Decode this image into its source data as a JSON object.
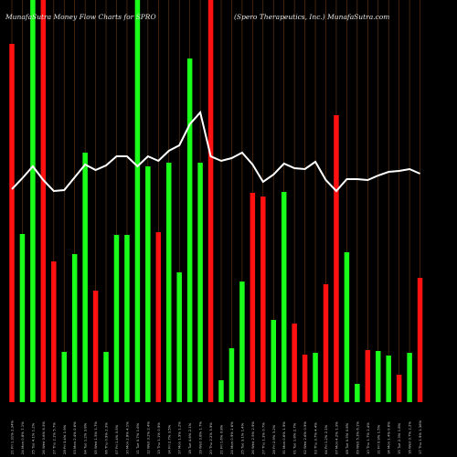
{
  "header": {
    "title": "MunafaSutra  Money Flow  Charts for SPRO",
    "subtitle": "(Spero  Therapeutics,  Inc.) MunafaSutra.com"
  },
  "chart_data": {
    "type": "bar",
    "ylim": [
      0,
      440
    ],
    "colors": {
      "up": "#19ff19",
      "down": "#ff1111",
      "grid": "#6b3a14",
      "line": "#ffffff",
      "background": "#000000"
    },
    "categories": [
      "21 Fri Feb 2025",
      "24 Mon Feb 2025",
      "25 Tue Feb 2025",
      "26 Wed Feb 2025",
      "27 Thu Feb 2025",
      "28 Fri Feb 2025",
      "03 Mon Mar 2025",
      "04 Tue Mar 2025",
      "05 Wed Mar 2025",
      "06 Thu Mar 2025",
      "07 Fri Mar 2025",
      "10 Mon Mar 2025",
      "11 Tue Mar 2025",
      "12 Wed Mar 2025",
      "13 Thu Mar 2025",
      "14 Fri Mar 2025",
      "17 Mon Mar 2025",
      "18 Tue Mar 2025",
      "19 Wed Mar 2025",
      "20 Thu Mar 2025",
      "21 Fri Mar 2025",
      "24 Mon Mar 2025",
      "25 Tue Mar 2025",
      "26 Wed Mar 2025",
      "27 Thu Mar 2025",
      "28 Fri Mar 2025",
      "31 Mon Mar 2025",
      "01 Tue Apr 2025",
      "02 Wed Apr 2025",
      "03 Thu Apr 2025",
      "04 Fri Apr 2025",
      "07 Mon Apr 2025",
      "08 Tue Apr 2025",
      "09 Wed Apr 2025",
      "10 Thu Apr 2025",
      "11 Fri Apr 2025",
      "14 Mon Apr 2025",
      "15 Tue Apr 2025",
      "16 Wed Apr 2025",
      "17 Thu Apr 2025"
    ],
    "tick_labels": [
      "21 Fri 1.31% 2.34%",
      "24 Mon 0.8% 7.1%",
      "25 Tue 4.1% 1.2%",
      "26 Wed 0.6% 6.3%",
      "27 Thu 2.1% 5.7%",
      "28 Fri 3.4% 1.9%",
      "03 Mon 2.4% 0.6%",
      "04 Tue 1.2% 3.8%",
      "05 Wed 1.5% 1.7%",
      "06 Thu 0.9% 2.3%",
      "07 Fri 1.4% 0.5%",
      "10 Mon 2.8% 4.1%",
      "11 Tue 0.7% 1.6%",
      "12 Wed 3.2% 2.4%",
      "13 Thu 1.1% 0.9%",
      "14 Fri 2.7% 3.5%",
      "17 Mon 1.9% 1.2%",
      "18 Tue 4.6% 2.1%",
      "19 Wed 0.8% 1.7%",
      "20 Thu 2.2% 3.9%",
      "21 Fri 1.6% 0.8%",
      "24 Mon 0.9% 2.6%",
      "25 Tue 3.1% 1.4%",
      "26 Wed 2.5% 2.9%",
      "27 Thu 1.3% 0.7%",
      "28 Fri 2.9% 3.2%",
      "31 Mon 0.6% 1.9%",
      "01 Tue 1.8% 2.7%",
      "02 Wed 2.6% 0.9%",
      "03 Thu 3.7% 4.4%",
      "04 Fri 1.2% 2.1%",
      "07 Mon 4.2% 1.3%",
      "08 Tue 0.5% 0.8%",
      "09 Wed 5.3% 6.1%",
      "10 Thu 1.7% 2.4%",
      "11 Fri 0.9% 1.5%",
      "14 Mon 1.4% 0.6%",
      "15 Tue 2.3% 1.8%",
      "16 Wed 0.7% 2.2%",
      "17 Thu 1.9% 1.36%"
    ],
    "series": [
      {
        "values": [
          392,
          184,
          440,
          440,
          154,
          55,
          162,
          273,
          122,
          55,
          183,
          183,
          440,
          258,
          186,
          262,
          142,
          376,
          262,
          440,
          24,
          59,
          132,
          229,
          225,
          90,
          230,
          86,
          52,
          54,
          129,
          314,
          164,
          20,
          57,
          56,
          51,
          30,
          54,
          136
        ],
        "colors": [
          "red",
          "green",
          "green",
          "red",
          "red",
          "green",
          "green",
          "green",
          "red",
          "green",
          "green",
          "green",
          "green",
          "green",
          "red",
          "green",
          "green",
          "green",
          "green",
          "red",
          "green",
          "green",
          "green",
          "red",
          "red",
          "green",
          "green",
          "red",
          "red",
          "green",
          "red",
          "red",
          "green",
          "green",
          "red",
          "green",
          "green",
          "red",
          "green",
          "red"
        ]
      },
      {
        "values": [
          233,
          245,
          258,
          243,
          231,
          232,
          246,
          260,
          254,
          259,
          269,
          269,
          258,
          269,
          264,
          275,
          281,
          304,
          317,
          269,
          264,
          267,
          273,
          260,
          241,
          249,
          261,
          256,
          255,
          263,
          243,
          231,
          244,
          244,
          243,
          248,
          252,
          253,
          255,
          250
        ]
      }
    ]
  }
}
